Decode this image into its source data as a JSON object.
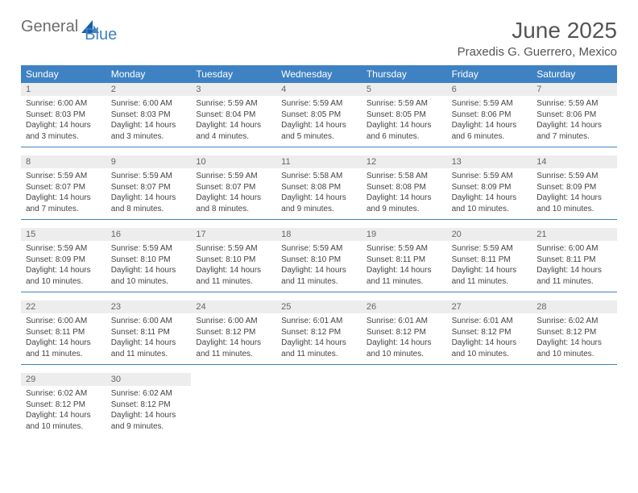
{
  "brand": {
    "part1": "General",
    "part2": "Blue"
  },
  "colors": {
    "accent": "#3f82c3",
    "row_alt": "#ededed",
    "text": "#444444",
    "heading": "#555555"
  },
  "title": "June 2025",
  "location": "Praxedis G. Guerrero, Mexico",
  "days_of_week": [
    "Sunday",
    "Monday",
    "Tuesday",
    "Wednesday",
    "Thursday",
    "Friday",
    "Saturday"
  ],
  "weeks": [
    [
      {
        "n": "1",
        "sr": "6:00 AM",
        "ss": "8:03 PM",
        "dl": "14 hours and 3 minutes."
      },
      {
        "n": "2",
        "sr": "6:00 AM",
        "ss": "8:03 PM",
        "dl": "14 hours and 3 minutes."
      },
      {
        "n": "3",
        "sr": "5:59 AM",
        "ss": "8:04 PM",
        "dl": "14 hours and 4 minutes."
      },
      {
        "n": "4",
        "sr": "5:59 AM",
        "ss": "8:05 PM",
        "dl": "14 hours and 5 minutes."
      },
      {
        "n": "5",
        "sr": "5:59 AM",
        "ss": "8:05 PM",
        "dl": "14 hours and 6 minutes."
      },
      {
        "n": "6",
        "sr": "5:59 AM",
        "ss": "8:06 PM",
        "dl": "14 hours and 6 minutes."
      },
      {
        "n": "7",
        "sr": "5:59 AM",
        "ss": "8:06 PM",
        "dl": "14 hours and 7 minutes."
      }
    ],
    [
      {
        "n": "8",
        "sr": "5:59 AM",
        "ss": "8:07 PM",
        "dl": "14 hours and 7 minutes."
      },
      {
        "n": "9",
        "sr": "5:59 AM",
        "ss": "8:07 PM",
        "dl": "14 hours and 8 minutes."
      },
      {
        "n": "10",
        "sr": "5:59 AM",
        "ss": "8:07 PM",
        "dl": "14 hours and 8 minutes."
      },
      {
        "n": "11",
        "sr": "5:58 AM",
        "ss": "8:08 PM",
        "dl": "14 hours and 9 minutes."
      },
      {
        "n": "12",
        "sr": "5:58 AM",
        "ss": "8:08 PM",
        "dl": "14 hours and 9 minutes."
      },
      {
        "n": "13",
        "sr": "5:59 AM",
        "ss": "8:09 PM",
        "dl": "14 hours and 10 minutes."
      },
      {
        "n": "14",
        "sr": "5:59 AM",
        "ss": "8:09 PM",
        "dl": "14 hours and 10 minutes."
      }
    ],
    [
      {
        "n": "15",
        "sr": "5:59 AM",
        "ss": "8:09 PM",
        "dl": "14 hours and 10 minutes."
      },
      {
        "n": "16",
        "sr": "5:59 AM",
        "ss": "8:10 PM",
        "dl": "14 hours and 10 minutes."
      },
      {
        "n": "17",
        "sr": "5:59 AM",
        "ss": "8:10 PM",
        "dl": "14 hours and 11 minutes."
      },
      {
        "n": "18",
        "sr": "5:59 AM",
        "ss": "8:10 PM",
        "dl": "14 hours and 11 minutes."
      },
      {
        "n": "19",
        "sr": "5:59 AM",
        "ss": "8:11 PM",
        "dl": "14 hours and 11 minutes."
      },
      {
        "n": "20",
        "sr": "5:59 AM",
        "ss": "8:11 PM",
        "dl": "14 hours and 11 minutes."
      },
      {
        "n": "21",
        "sr": "6:00 AM",
        "ss": "8:11 PM",
        "dl": "14 hours and 11 minutes."
      }
    ],
    [
      {
        "n": "22",
        "sr": "6:00 AM",
        "ss": "8:11 PM",
        "dl": "14 hours and 11 minutes."
      },
      {
        "n": "23",
        "sr": "6:00 AM",
        "ss": "8:11 PM",
        "dl": "14 hours and 11 minutes."
      },
      {
        "n": "24",
        "sr": "6:00 AM",
        "ss": "8:12 PM",
        "dl": "14 hours and 11 minutes."
      },
      {
        "n": "25",
        "sr": "6:01 AM",
        "ss": "8:12 PM",
        "dl": "14 hours and 11 minutes."
      },
      {
        "n": "26",
        "sr": "6:01 AM",
        "ss": "8:12 PM",
        "dl": "14 hours and 10 minutes."
      },
      {
        "n": "27",
        "sr": "6:01 AM",
        "ss": "8:12 PM",
        "dl": "14 hours and 10 minutes."
      },
      {
        "n": "28",
        "sr": "6:02 AM",
        "ss": "8:12 PM",
        "dl": "14 hours and 10 minutes."
      }
    ],
    [
      {
        "n": "29",
        "sr": "6:02 AM",
        "ss": "8:12 PM",
        "dl": "14 hours and 10 minutes."
      },
      {
        "n": "30",
        "sr": "6:02 AM",
        "ss": "8:12 PM",
        "dl": "14 hours and 9 minutes."
      },
      null,
      null,
      null,
      null,
      null
    ]
  ],
  "labels": {
    "sunrise": "Sunrise:",
    "sunset": "Sunset:",
    "daylight": "Daylight:"
  }
}
